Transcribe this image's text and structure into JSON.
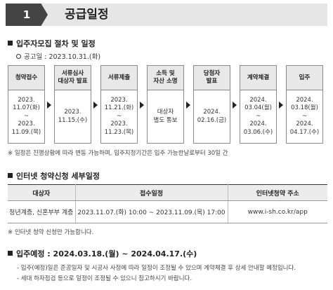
{
  "header": {
    "number": "1",
    "title": "공급일정"
  },
  "schedule": {
    "title": "입주자모집 절차 및 일정",
    "announcement": "공고일 : 2023.10.31.(화)",
    "steps": [
      {
        "label": "청약접수",
        "date": "2023.\n11.07(화)\n~\n2023.\n11.09.(목)"
      },
      {
        "label": "서류심사\n대상자 발표",
        "date": "2023.\n11.15.(수)"
      },
      {
        "label": "서류제출",
        "date": "2023.\n11.21.(화)\n~\n2023.\n11.23.(목)"
      },
      {
        "label": "소득 및\n자산 소명",
        "date": "대상자\n별도 통보"
      },
      {
        "label": "당첨자\n발표",
        "date": "2024.\n02.16.(금)"
      },
      {
        "label": "계약체결",
        "date": "2024.\n03.04(월)\n~\n2024.\n03.06.(수)"
      },
      {
        "label": "입주",
        "date": "2024.\n03.18(월)\n~\n2024.\n04.17.(수)"
      }
    ],
    "note": "※ 일정은 진행상황에 따라 변동 가능하며, 입주지정기간은 입주 가능한날로부터 30일 간"
  },
  "online": {
    "title": "인터넷 청약신청 세부일정",
    "headers": [
      "대상자",
      "접수일정",
      "인터넷청약 주소"
    ],
    "rows": [
      [
        "청년계층, 신혼부부 계층",
        "2023.11.07.(화) 10:00 ~ 2023.11.09.(목) 17:00",
        "www.i-sh.co.kr/app"
      ]
    ],
    "note": "※ 인터넷 청약 신청만 가능합니다."
  },
  "move_in": {
    "title": "입주예정 : 2024.03.18.(월) ~ 2024.04.17.(수)",
    "bullets": [
      "- 입주(예정)일은 준공일자 및 시공사 사정에 따라 일정이 조정될 수 있으며 계약체결 후 상세 안내할 예정입니다.",
      "- 세대 하자점검 등으로 일정이 조정될 수 있으니 참고하시기 바랍니다."
    ]
  }
}
